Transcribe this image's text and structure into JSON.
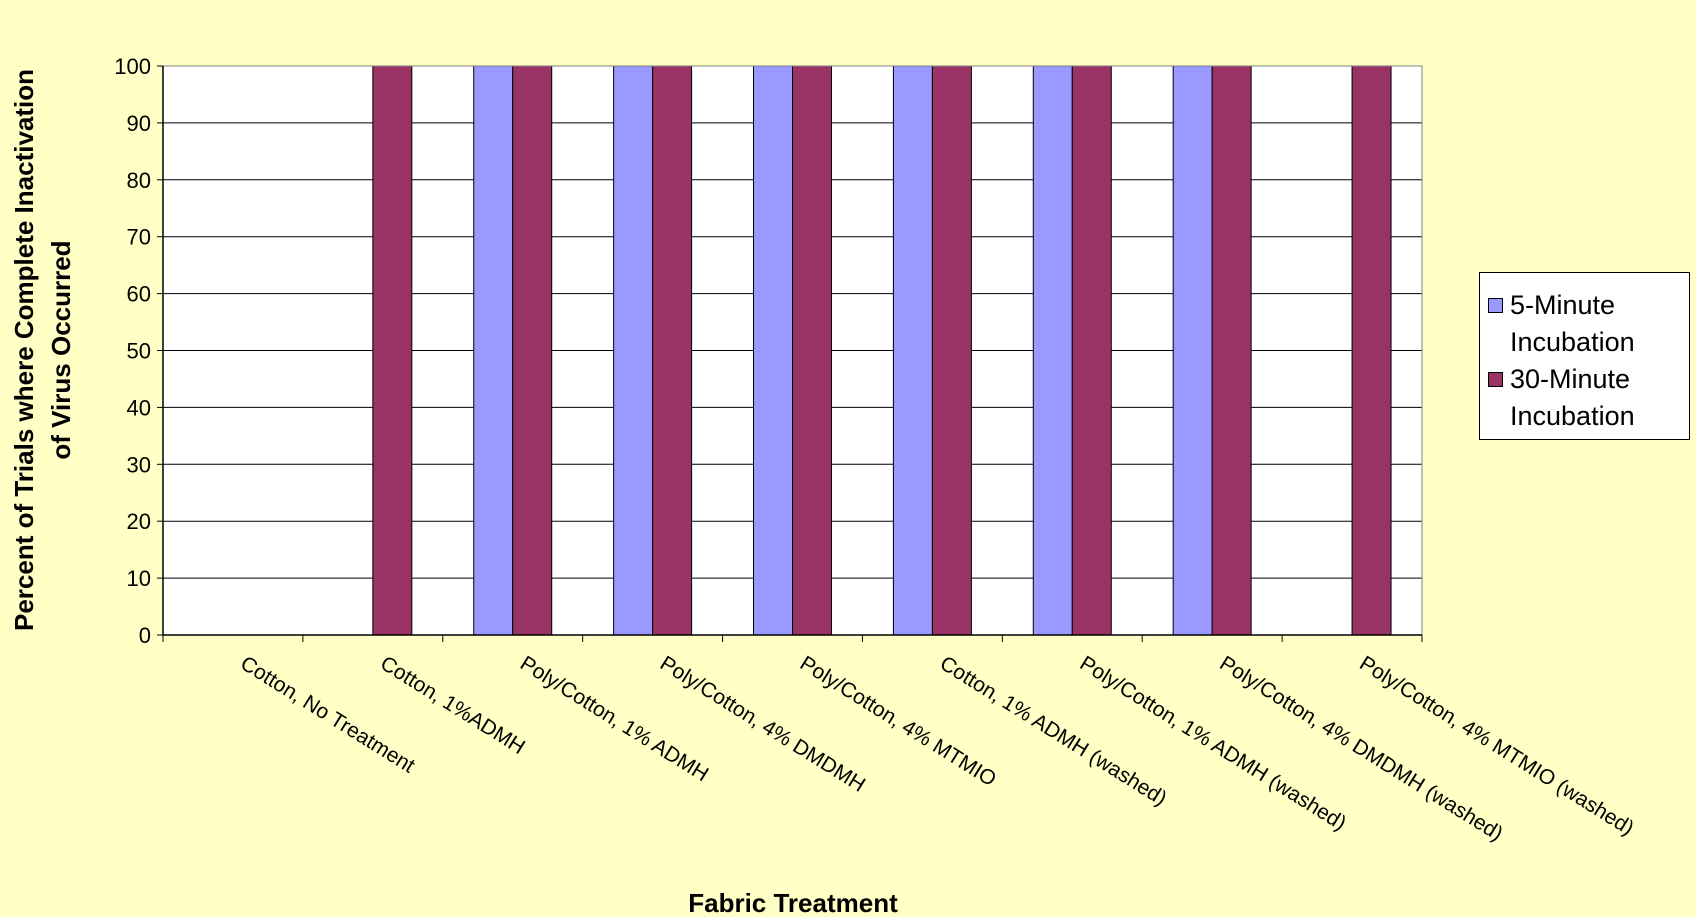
{
  "chart_data": {
    "type": "bar",
    "xlabel": "Fabric Treatment",
    "ylabel": [
      "Percent of Trials where Complete Inactivation",
      "of Virus Occurred"
    ],
    "ylim": [
      0,
      100
    ],
    "yticks": [
      0,
      10,
      20,
      30,
      40,
      50,
      60,
      70,
      80,
      90,
      100
    ],
    "grid": true,
    "legend_position": "right",
    "categories": [
      "Cotton, No Treatment",
      "Cotton, 1%ADMH",
      "Poly/Cotton, 1% ADMH",
      "Poly/Cotton, 4% DMDMH",
      "Poly/Cotton, 4% MTMIO",
      "Cotton, 1% ADMH (washed)",
      "Poly/Cotton, 1% ADMH (washed)",
      "Poly/Cotton, 4% DMDMH (washed)",
      "Poly/Cotton, 4% MTMIO (washed)"
    ],
    "series": [
      {
        "name": "5-Minute Incubation",
        "color": "#9999ff",
        "values": [
          0,
          0,
          100,
          100,
          100,
          100,
          100,
          100,
          0
        ]
      },
      {
        "name": "30-Minute Incubation",
        "color": "#993366",
        "values": [
          0,
          100,
          100,
          100,
          100,
          100,
          100,
          100,
          100
        ]
      }
    ]
  },
  "legend": {
    "items": [
      {
        "label": "5-Minute\nIncubation",
        "color": "#9999ff"
      },
      {
        "label": "30-Minute\nIncubation",
        "color": "#993366"
      }
    ]
  }
}
